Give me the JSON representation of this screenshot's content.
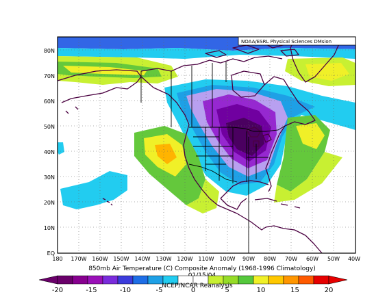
{
  "credit": "NOAA/ESRL Physical Sciences DMsion",
  "caption": {
    "line1": "850mb Air Temperature (C) Composite Anomaly (1968-1996 Climatology)",
    "line2": "01/15/04",
    "line3": "NCEP/NCAR Reanalysis"
  },
  "lat_ticks": [
    "EQ",
    "10N",
    "20N",
    "30N",
    "40N",
    "50N",
    "60N",
    "70N",
    "80N"
  ],
  "lon_ticks": [
    "180",
    "170W",
    "160W",
    "150W",
    "140W",
    "130W",
    "120W",
    "110W",
    "100W",
    "90W",
    "80W",
    "70W",
    "60W",
    "50W",
    "40W"
  ],
  "colorbar": {
    "ticks": [
      "-20",
      "-15",
      "-10",
      "-5",
      "0",
      "5",
      "10",
      "15",
      "20"
    ],
    "colors": [
      "#6a006a",
      "#87008f",
      "#9a10b8",
      "#7a2cdc",
      "#3c3cdc",
      "#1e6ee6",
      "#1ea0e6",
      "#22ccf0",
      "#ffffff",
      "#ffffff",
      "#c8f032",
      "#96dc28",
      "#55c83c",
      "#f0f028",
      "#ffc800",
      "#ff9600",
      "#ff5a00",
      "#e60000"
    ]
  },
  "colors": {
    "lavender": "#b8a0f0",
    "violet": "#9628d0",
    "purple": "#7000a0",
    "dark_purple": "#4a0060",
    "blue": "#3266e6",
    "light_blue": "#1ea0e6",
    "cyan": "#22ccf0",
    "light_green": "#c8f032",
    "green": "#64c83c",
    "yellow": "#f0f028",
    "orange": "#ffb400",
    "coast": "#4a0040"
  }
}
